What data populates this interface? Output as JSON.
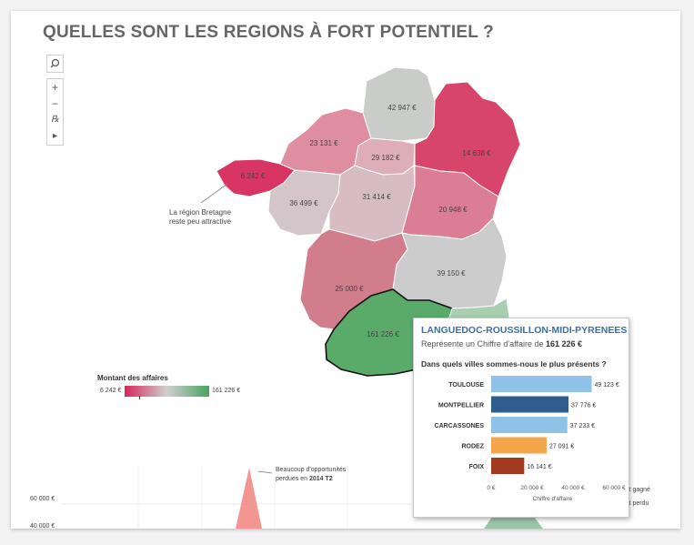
{
  "title": "QUELLES SONT LES REGIONS À FORT POTENTIEL ?",
  "toolbar": {
    "search_icon": "magnifier",
    "zoom_in": "+",
    "zoom_out": "−",
    "clear_filter": "℞",
    "play": "▸"
  },
  "colors": {
    "low": "#d6265a",
    "mid": "#cfcfcf",
    "high": "#4aa25e",
    "bars": [
      "#8ec2e6",
      "#2f5d8e",
      "#8ec2e6",
      "#f5a54a",
      "#a33a1f"
    ]
  },
  "regions": [
    {
      "name": "Bretagne",
      "label": "6 242 €",
      "color": "#d83563"
    },
    {
      "name": "Normandie",
      "label": "23 131 €",
      "color": "#de8e9e"
    },
    {
      "name": "Nord-Pas-de-Calais-Picardie",
      "label": "42 947 €",
      "color": "#c9ccc9"
    },
    {
      "name": "Ile-de-France",
      "label": "29 182 €",
      "color": "#ddaeb8"
    },
    {
      "name": "Alsace-Champagne-Ardenne-Lorraine",
      "label": "14 638 €",
      "color": "#d8456b"
    },
    {
      "name": "Pays de la Loire",
      "label": "36 499 €",
      "color": "#d3c5c9"
    },
    {
      "name": "Centre-Val de Loire",
      "label": "31 414 €",
      "color": "#d7bcc4"
    },
    {
      "name": "Bourgogne-Franche-Comté",
      "label": "20 948 €",
      "color": "#dc7e93"
    },
    {
      "name": "Aquitaine-Limousin-Poitou-Charentes",
      "label": "25 000 €",
      "color": "#d27d8c"
    },
    {
      "name": "Auvergne-Rhône-Alpes",
      "label": "39 150 €",
      "color": "#cbcccb"
    },
    {
      "name": "Languedoc-Roussillon-Midi-Pyrénées",
      "label": "161 226 €",
      "color": "#5aaa6a"
    },
    {
      "name": "Provence-Alpes-Côte d'Azur",
      "label": "",
      "color": "#a8cfb0"
    }
  ],
  "annotation_bretagne": [
    "La région Bretagne",
    "reste peu attractive"
  ],
  "legend": {
    "title": "Montant des affaires",
    "min": "6 242 €",
    "max": "161 226 €"
  },
  "tooltip": {
    "title": "LANGUEDOC-ROUSSILLON-MIDI-PYRENEES",
    "subtitle_prefix": "Représente un Chiffre d'affaire de ",
    "subtitle_value": "161 226 €",
    "question": "Dans quels villes sommes-nous le plus présents ?",
    "x_label": "Chiffre d'affaire"
  },
  "chart_data": {
    "type": "bar",
    "orientation": "horizontal",
    "categories": [
      "TOULOUSE",
      "MONTPELLIER",
      "CARCASSONES",
      "RODEZ",
      "FOIX"
    ],
    "values": [
      49123,
      37776,
      37233,
      27091,
      16141
    ],
    "value_labels": [
      "49 123 €",
      "37 776 €",
      "37 233 €",
      "27 091 €",
      "16 141 €"
    ],
    "x_ticks": [
      "0 €",
      "20 000 €",
      "40 000 €",
      "60 000 €"
    ],
    "x_tick_values": [
      0,
      20000,
      40000,
      60000
    ],
    "xlabel": "Chiffre d'affaire",
    "xlim": [
      0,
      60000
    ]
  },
  "bottom_chart": {
    "annotation": [
      "Beaucoup d'opportunités",
      "perdues en ",
      "2014 T2"
    ],
    "y_tick": "60 000 €",
    "legend_right": [
      "it gagné",
      "it perdu"
    ]
  }
}
